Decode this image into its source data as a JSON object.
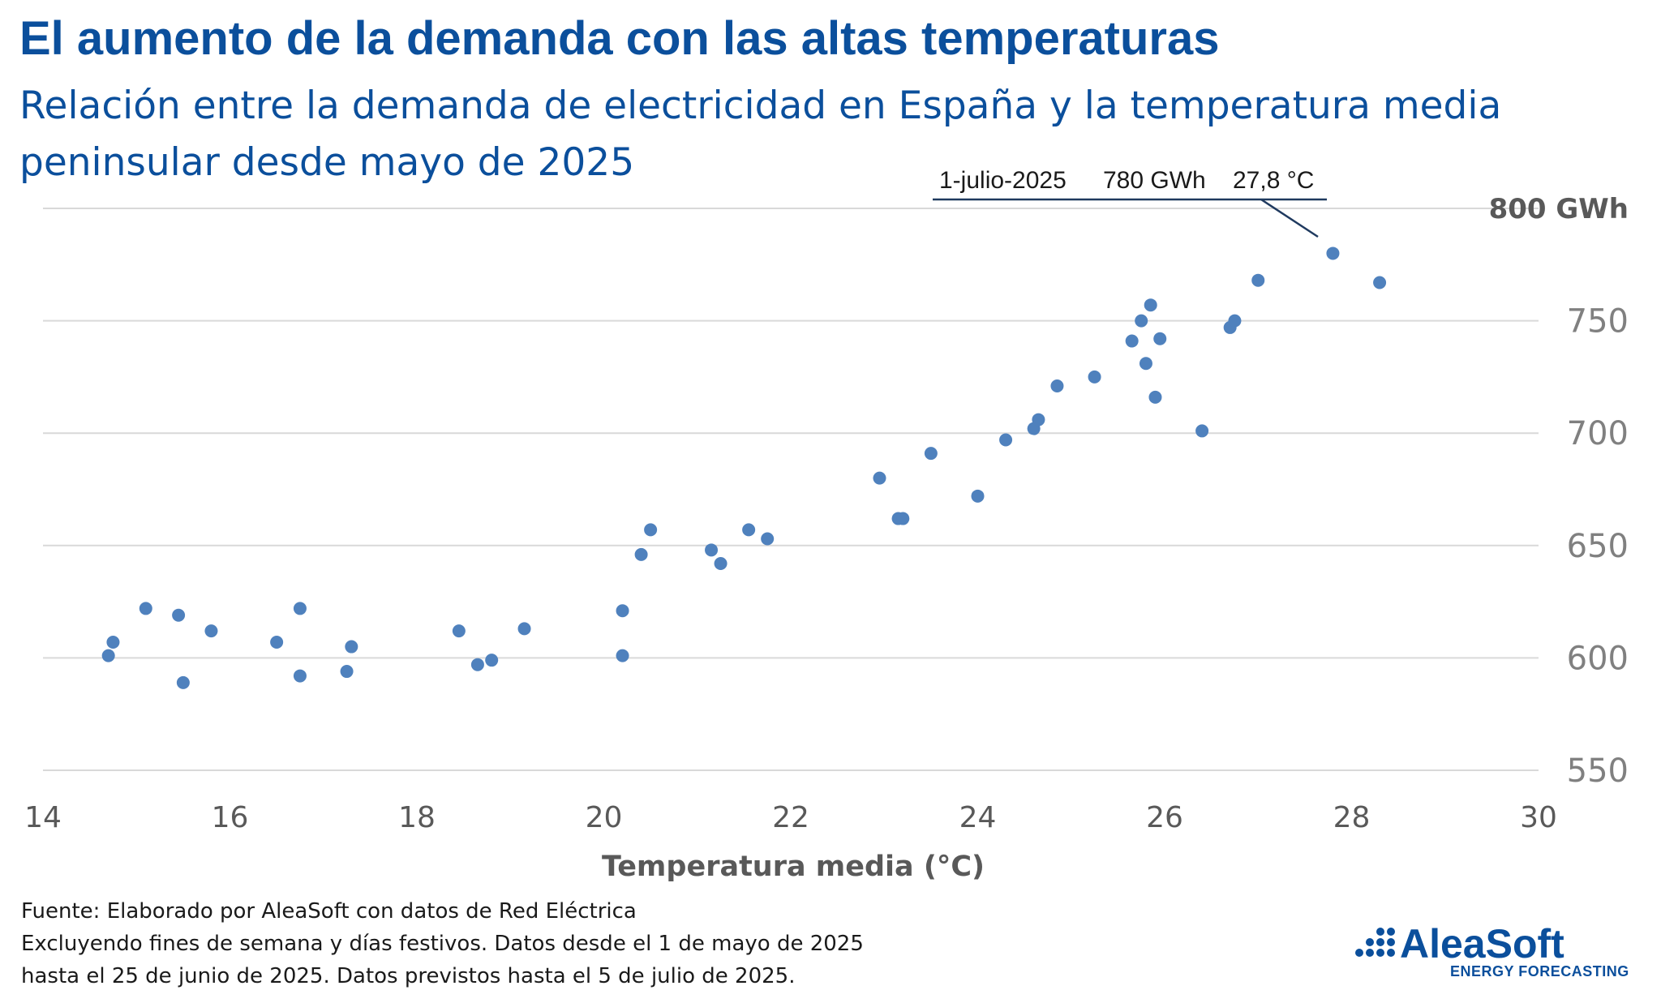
{
  "title": "El aumento de la demanda con las altas temperaturas",
  "subtitle": "Relación entre la demanda de electricidad en España y la temperatura media peninsular desde mayo de 2025",
  "footer": {
    "line1": "Fuente: Elaborado por AleaSoft con datos de Red Eléctrica",
    "line2": "Excluyendo fines de semana y días festivos. Datos desde el 1 de mayo de 2025",
    "line3": "hasta el 25 de junio de 2025. Datos previstos hasta el 5 de julio de 2025."
  },
  "logo": {
    "name": "AleaSoft",
    "tagline": "ENERGY FORECASTING"
  },
  "chart_data": {
    "type": "scatter",
    "title": "El aumento de la demanda con las altas temperaturas",
    "subtitle": "Relación entre la demanda de electricidad en España y la temperatura media peninsular desde mayo de 2025",
    "xlabel": "Temperatura media (°C)",
    "ylabel": "",
    "xlim": [
      14,
      30
    ],
    "ylim": [
      550,
      800
    ],
    "xticks": [
      14,
      16,
      18,
      20,
      22,
      24,
      26,
      28,
      30
    ],
    "yticks": [
      550,
      600,
      650,
      700,
      750,
      800
    ],
    "ytick_labels": [
      "550",
      "600",
      "650",
      "700",
      "750",
      "800 GWh"
    ],
    "grid": true,
    "marker_color": "#4f81bd",
    "annotation": {
      "date": "1-julio-2025",
      "demand": "780 GWh",
      "temperature": "27,8 °C",
      "x": 27.8,
      "y": 780
    },
    "points": [
      [
        14.7,
        601
      ],
      [
        14.75,
        607
      ],
      [
        15.1,
        622
      ],
      [
        15.45,
        619
      ],
      [
        15.5,
        589
      ],
      [
        15.8,
        612
      ],
      [
        16.5,
        607
      ],
      [
        16.75,
        592
      ],
      [
        16.75,
        622
      ],
      [
        17.25,
        594
      ],
      [
        17.3,
        605
      ],
      [
        18.45,
        612
      ],
      [
        18.65,
        597
      ],
      [
        18.8,
        599
      ],
      [
        19.15,
        613
      ],
      [
        20.2,
        601
      ],
      [
        20.2,
        621
      ],
      [
        20.4,
        646
      ],
      [
        20.5,
        657
      ],
      [
        21.15,
        648
      ],
      [
        21.25,
        642
      ],
      [
        21.55,
        657
      ],
      [
        21.75,
        653
      ],
      [
        22.95,
        680
      ],
      [
        23.15,
        662
      ],
      [
        23.2,
        662
      ],
      [
        23.5,
        691
      ],
      [
        24.0,
        672
      ],
      [
        24.3,
        697
      ],
      [
        24.6,
        702
      ],
      [
        24.65,
        706
      ],
      [
        24.85,
        721
      ],
      [
        25.25,
        725
      ],
      [
        25.65,
        741
      ],
      [
        25.75,
        750
      ],
      [
        25.8,
        731
      ],
      [
        25.85,
        757
      ],
      [
        25.9,
        716
      ],
      [
        25.95,
        742
      ],
      [
        26.4,
        701
      ],
      [
        26.7,
        747
      ],
      [
        26.75,
        750
      ],
      [
        27.0,
        768
      ],
      [
        27.8,
        780
      ],
      [
        28.3,
        767
      ]
    ]
  }
}
